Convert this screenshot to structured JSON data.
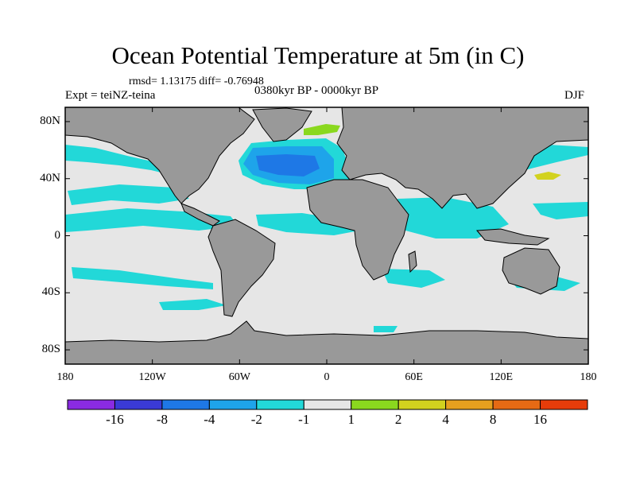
{
  "chart_data": {
    "type": "heatmap",
    "title": "Ocean Potential Temperature at 5m (in C)",
    "stat_line": "rmsd= 1.13175 diff= -0.76948",
    "period": "0380kyr BP - 0000kyr BP",
    "experiment": "Expt = teiNZ-teina",
    "season": "DJF",
    "x_ticks": [
      "180",
      "120W",
      "60W",
      "0",
      "60E",
      "120E",
      "180"
    ],
    "x_tick_values": [
      -180,
      -120,
      -60,
      0,
      60,
      120,
      180
    ],
    "y_ticks": [
      "80N",
      "40N",
      "0",
      "40S",
      "80S"
    ],
    "y_tick_values": [
      80,
      40,
      0,
      -40,
      -80
    ],
    "xlim": [
      -180,
      180
    ],
    "ylim": [
      -90,
      90
    ],
    "colorbar": {
      "levels": [
        "-16",
        "-8",
        "-4",
        "-2",
        "-1",
        "1",
        "2",
        "4",
        "8",
        "16"
      ],
      "colors": [
        "#8a2be2",
        "#3a3ad6",
        "#1e78e6",
        "#1ea4ea",
        "#22d8d8",
        "#e6e6e6",
        "#8ad81e",
        "#d2d21e",
        "#e6a01e",
        "#e66a14",
        "#e63c0a"
      ]
    },
    "colors": {
      "land": "#999999",
      "ocean_neutral": "#e6e6e6",
      "cool_light": "#22d8d8",
      "cool_mid": "#1ea4ea",
      "cool_strong": "#1e78e6",
      "warm": "#8ad81e",
      "warm_mid": "#d2d21e"
    }
  }
}
